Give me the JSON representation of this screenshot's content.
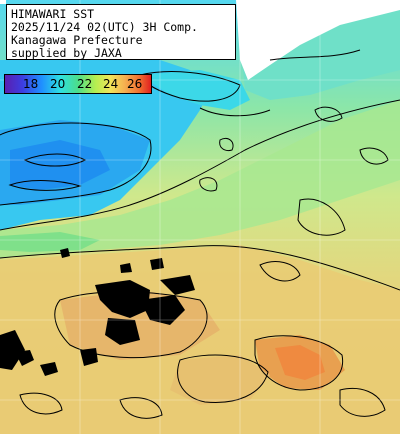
{
  "header": {
    "line1": "HIMAWARI SST",
    "line2": "2025/11/24 02(UTC) 3H Comp.",
    "line3": "Kanagawa Prefecture",
    "line4": "supplied by JAXA"
  },
  "colorbar": {
    "labels": [
      "18",
      "20",
      "22",
      "24",
      "26"
    ],
    "gradient": [
      "#5a1fb0",
      "#3d3de0",
      "#1f8fff",
      "#2ee0e0",
      "#4dde8a",
      "#b5ee50",
      "#f0e55a",
      "#f5b050",
      "#f07030",
      "#e02020"
    ]
  },
  "colors": {
    "land": "#ffffff",
    "cloud": "#000000",
    "contour": "#000000"
  }
}
